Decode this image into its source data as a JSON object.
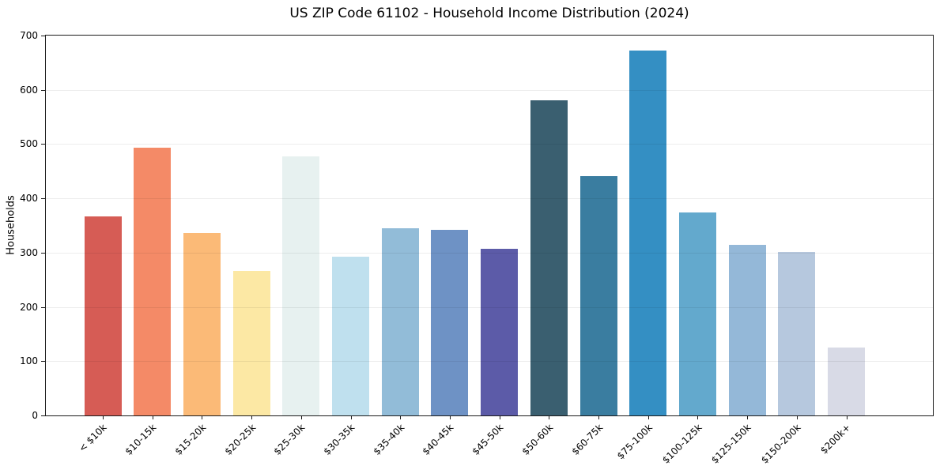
{
  "chart_data": {
    "type": "bar",
    "title": "US ZIP Code 61102 - Household Income Distribution (2024)",
    "ylabel": "Households",
    "xlabel": "",
    "ylim": [
      0,
      700
    ],
    "yticks": [
      0,
      100,
      200,
      300,
      400,
      500,
      600,
      700
    ],
    "grid": true,
    "legend": "none",
    "categories": [
      "< $10k",
      "$10-15k",
      "$15-20k",
      "$20-25k",
      "$25-30k",
      "$30-35k",
      "$35-40k",
      "$40-45k",
      "$45-50k",
      "$50-60k",
      "$60-75k",
      "$75-100k",
      "$100-125k",
      "$125-150k",
      "$150-200k",
      "$200k+"
    ],
    "values": [
      367,
      493,
      336,
      267,
      478,
      293,
      345,
      342,
      307,
      581,
      441,
      673,
      374,
      314,
      301,
      125
    ],
    "bar_colors": [
      "#d65c55",
      "#f48a67",
      "#fbba77",
      "#fce8a4",
      "#e7f1f0",
      "#bfe0ee",
      "#92bcd8",
      "#6e92c5",
      "#5c5ba8",
      "#3a5f70",
      "#3a7da0",
      "#348fc3",
      "#63a9cd",
      "#94b8d8",
      "#b6c8de",
      "#d8dae6"
    ],
    "axis_color": "#1a1a1a",
    "grid_color": "rgba(0,0,0,0.07)"
  }
}
